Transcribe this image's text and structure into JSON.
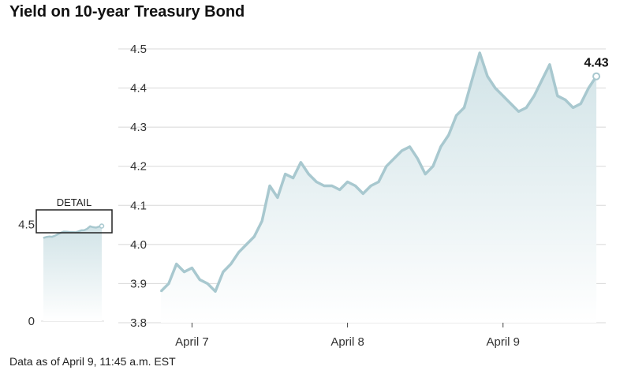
{
  "title": "Yield on 10-year Treasury Bond",
  "footnote": "Data as of April 9, 11:45 a.m. EST",
  "colors": {
    "line": "#a8c8cf",
    "area_top": "#cfe2e6",
    "area_bottom": "#ffffff",
    "grid": "#d8d8d8"
  },
  "chart_data": [
    {
      "type": "area",
      "title": "Yield on 10-year Treasury Bond",
      "xlabel": "",
      "ylabel": "",
      "ylim": [
        3.8,
        4.5
      ],
      "y_ticks": [
        3.8,
        3.9,
        4.0,
        4.1,
        4.2,
        4.3,
        4.4,
        4.5
      ],
      "y_tick_labels": [
        "3.8",
        "3.9",
        "4.0",
        "4.1",
        "4.2",
        "4.3",
        "4.4",
        "4.5"
      ],
      "x_ticks": [
        {
          "x": 0.2,
          "label": "April 7"
        },
        {
          "x": 1.2,
          "label": "April 8"
        },
        {
          "x": 2.2,
          "label": "April 9"
        }
      ],
      "xlim": [
        0,
        2.82
      ],
      "grid": true,
      "end_label": "4.43",
      "series": [
        {
          "x": [
            0.0,
            0.05,
            0.1,
            0.15,
            0.2,
            0.25,
            0.3,
            0.35,
            0.4,
            0.45,
            0.5,
            0.55,
            0.6,
            0.65,
            0.7,
            0.75,
            0.8,
            0.85,
            0.9,
            0.95,
            1.0,
            1.05,
            1.1,
            1.15,
            1.2,
            1.25,
            1.3,
            1.35,
            1.4,
            1.45,
            1.5,
            1.55,
            1.6,
            1.65,
            1.7,
            1.75,
            1.8,
            1.85,
            1.9,
            1.95,
            2.0,
            2.05,
            2.1,
            2.15,
            2.2,
            2.25,
            2.3,
            2.35,
            2.4,
            2.45,
            2.5,
            2.55,
            2.6,
            2.65,
            2.7,
            2.75,
            2.8
          ],
          "values": [
            3.88,
            3.9,
            3.95,
            3.93,
            3.94,
            3.91,
            3.9,
            3.88,
            3.93,
            3.95,
            3.98,
            4.0,
            4.02,
            4.06,
            4.15,
            4.12,
            4.18,
            4.17,
            4.21,
            4.18,
            4.16,
            4.15,
            4.15,
            4.14,
            4.16,
            4.15,
            4.13,
            4.15,
            4.16,
            4.2,
            4.22,
            4.24,
            4.25,
            4.22,
            4.18,
            4.2,
            4.25,
            4.28,
            4.33,
            4.35,
            4.42,
            4.49,
            4.43,
            4.4,
            4.38,
            4.36,
            4.34,
            4.35,
            4.38,
            4.42,
            4.46,
            4.38,
            4.37,
            4.35,
            4.36,
            4.4,
            4.43
          ]
        }
      ]
    },
    {
      "type": "area",
      "title": "",
      "ylim": [
        0,
        5
      ],
      "y_ticks": [
        0,
        4.5
      ],
      "y_tick_labels": [
        "0",
        "4.5"
      ],
      "detail_label": "DETAIL",
      "series": [
        {
          "x": [
            0,
            1,
            2,
            3,
            4,
            5,
            6,
            7,
            8,
            9,
            10,
            11,
            12,
            13,
            14,
            15,
            16,
            17,
            18,
            19,
            20
          ],
          "values": [
            3.88,
            3.92,
            3.94,
            3.93,
            3.98,
            4.05,
            4.12,
            4.17,
            4.16,
            4.15,
            4.15,
            4.14,
            4.18,
            4.23,
            4.24,
            4.3,
            4.42,
            4.38,
            4.36,
            4.4,
            4.43
          ]
        }
      ]
    }
  ]
}
